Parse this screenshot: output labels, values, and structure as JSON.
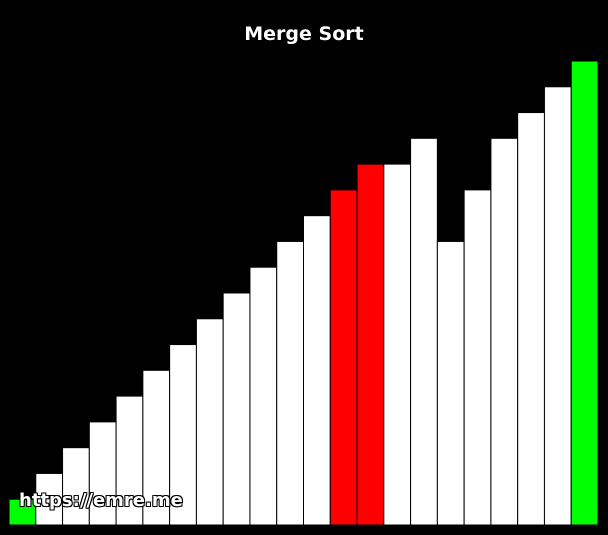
{
  "title": "Merge Sort",
  "watermark": "https://emre.me",
  "colors": {
    "background": "#000000",
    "default_bar": "#ffffff",
    "compare_bar": "#ff0000",
    "sorted_bar": "#00ff00",
    "bar_outline": "#000000"
  },
  "chart_data": {
    "type": "bar",
    "title": "Merge Sort",
    "values": [
      1,
      2,
      3,
      4,
      5,
      6,
      7,
      8,
      9,
      10,
      11,
      12,
      13,
      14,
      14,
      15,
      11,
      13,
      15,
      16,
      17,
      18
    ],
    "states": [
      "sorted",
      "default",
      "default",
      "default",
      "default",
      "default",
      "default",
      "default",
      "default",
      "default",
      "default",
      "default",
      "compare",
      "compare",
      "default",
      "default",
      "default",
      "default",
      "default",
      "default",
      "default",
      "sorted"
    ],
    "ylim": [
      0,
      18
    ],
    "grid": false,
    "legend": "none",
    "axes_visible": false
  }
}
